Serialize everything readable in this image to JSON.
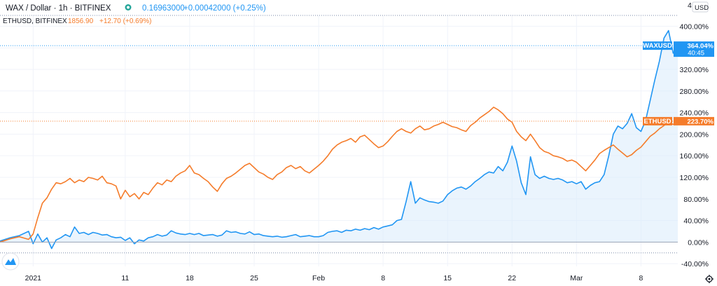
{
  "header": {
    "symbol": "WAX / Dollar · 1h · BITFINEX",
    "price": "0.16963000",
    "change": "+0.00042000 (+0.25%)",
    "compare_symbol": "ETHUSD, BITFINEX",
    "compare_price": "1856.90",
    "compare_change": "+12.70 (+0.69%)"
  },
  "currency_label": "USD",
  "top_partial_tick": "4",
  "colors": {
    "wax": "#2196f3",
    "eth": "#f57c2b",
    "wax_area": "#d9ebfb",
    "text": "#131722",
    "grid": "#f0f3fa",
    "dotted": "#7a8aa8"
  },
  "chart_data": {
    "type": "line",
    "ylabel": "",
    "ylim": [
      -45,
      420
    ],
    "y_ticks": [
      "400.00%",
      "360.00%",
      "320.00%",
      "280.00%",
      "240.00%",
      "200.00%",
      "160.00%",
      "120.00%",
      "80.00%",
      "40.00%",
      "0.00%",
      "-40.00%"
    ],
    "y_tick_values": [
      400,
      360,
      320,
      280,
      240,
      200,
      160,
      120,
      80,
      40,
      0,
      -40
    ],
    "x_ticks": [
      "2021",
      "11",
      "18",
      "25",
      "Feb",
      "8",
      "15",
      "22",
      "Mar",
      "8"
    ],
    "x_tick_positions": [
      0.0,
      10.0,
      17.0,
      24.0,
      31.0,
      38.0,
      45.0,
      52.0,
      59.0,
      66.0
    ],
    "xlim": [
      -3.6,
      70.0
    ],
    "series": [
      {
        "name": "WAXUSD",
        "color": "#2196f3",
        "fill": true,
        "label_value": "364.04%",
        "label_sub": "40:45",
        "points": [
          [
            -3.6,
            2
          ],
          [
            -2.5,
            8
          ],
          [
            -1.5,
            12
          ],
          [
            -0.5,
            20
          ],
          [
            0.0,
            -3
          ],
          [
            0.5,
            15
          ],
          [
            1.0,
            0
          ],
          [
            1.5,
            8
          ],
          [
            2.0,
            -12
          ],
          [
            2.5,
            4
          ],
          [
            3.0,
            8
          ],
          [
            3.5,
            14
          ],
          [
            4.0,
            10
          ],
          [
            4.5,
            28
          ],
          [
            5.0,
            16
          ],
          [
            5.5,
            18
          ],
          [
            6.0,
            14
          ],
          [
            6.5,
            18
          ],
          [
            7.0,
            16
          ],
          [
            7.5,
            13
          ],
          [
            8.0,
            14
          ],
          [
            8.5,
            10
          ],
          [
            9.0,
            8
          ],
          [
            9.5,
            9
          ],
          [
            10.0,
            3
          ],
          [
            10.5,
            8
          ],
          [
            11.0,
            -3
          ],
          [
            11.5,
            4
          ],
          [
            12.0,
            2
          ],
          [
            12.5,
            8
          ],
          [
            13.0,
            10
          ],
          [
            13.5,
            14
          ],
          [
            14.0,
            11
          ],
          [
            14.5,
            13
          ],
          [
            15.0,
            21
          ],
          [
            15.5,
            17
          ],
          [
            16.0,
            15
          ],
          [
            16.5,
            14
          ],
          [
            17.0,
            16
          ],
          [
            17.5,
            14
          ],
          [
            18.0,
            16
          ],
          [
            18.5,
            12
          ],
          [
            19.0,
            13
          ],
          [
            19.5,
            14
          ],
          [
            20.0,
            11
          ],
          [
            20.5,
            13
          ],
          [
            21.0,
            21
          ],
          [
            21.5,
            18
          ],
          [
            22.0,
            19
          ],
          [
            22.5,
            16
          ],
          [
            23.0,
            15
          ],
          [
            23.5,
            19
          ],
          [
            24.0,
            14
          ],
          [
            24.5,
            15
          ],
          [
            25.0,
            12
          ],
          [
            25.5,
            11
          ],
          [
            26.0,
            10
          ],
          [
            26.5,
            11
          ],
          [
            27.0,
            9
          ],
          [
            27.5,
            10
          ],
          [
            28.0,
            12
          ],
          [
            28.5,
            14
          ],
          [
            29.0,
            10
          ],
          [
            29.5,
            11
          ],
          [
            30.0,
            12
          ],
          [
            30.5,
            10
          ],
          [
            31.0,
            10
          ],
          [
            31.5,
            12
          ],
          [
            32.0,
            18
          ],
          [
            32.5,
            20
          ],
          [
            33.0,
            21
          ],
          [
            33.5,
            18
          ],
          [
            34.0,
            22
          ],
          [
            34.5,
            21
          ],
          [
            35.0,
            24
          ],
          [
            35.5,
            22
          ],
          [
            36.0,
            25
          ],
          [
            36.5,
            23
          ],
          [
            37.0,
            27
          ],
          [
            37.5,
            24
          ],
          [
            38.0,
            28
          ],
          [
            38.5,
            30
          ],
          [
            39.0,
            32
          ],
          [
            39.5,
            40
          ],
          [
            40.0,
            42
          ],
          [
            40.5,
            75
          ],
          [
            41.0,
            112
          ],
          [
            41.5,
            72
          ],
          [
            42.0,
            82
          ],
          [
            42.5,
            78
          ],
          [
            43.0,
            75
          ],
          [
            43.5,
            74
          ],
          [
            44.0,
            72
          ],
          [
            44.5,
            76
          ],
          [
            45.0,
            88
          ],
          [
            45.5,
            95
          ],
          [
            46.0,
            100
          ],
          [
            46.5,
            102
          ],
          [
            47.0,
            98
          ],
          [
            47.5,
            104
          ],
          [
            48.0,
            112
          ],
          [
            48.5,
            118
          ],
          [
            49.0,
            125
          ],
          [
            49.5,
            130
          ],
          [
            50.0,
            128
          ],
          [
            50.5,
            140
          ],
          [
            51.0,
            132
          ],
          [
            51.5,
            148
          ],
          [
            52.0,
            178
          ],
          [
            52.5,
            150
          ],
          [
            53.0,
            110
          ],
          [
            53.5,
            88
          ],
          [
            54.0,
            158
          ],
          [
            54.5,
            125
          ],
          [
            55.0,
            118
          ],
          [
            55.5,
            122
          ],
          [
            56.0,
            118
          ],
          [
            56.5,
            116
          ],
          [
            57.0,
            118
          ],
          [
            57.5,
            115
          ],
          [
            58.0,
            110
          ],
          [
            58.5,
            112
          ],
          [
            59.0,
            108
          ],
          [
            59.5,
            112
          ],
          [
            60.0,
            98
          ],
          [
            60.5,
            105
          ],
          [
            61.0,
            110
          ],
          [
            61.5,
            112
          ],
          [
            62.0,
            125
          ],
          [
            62.5,
            160
          ],
          [
            63.0,
            200
          ],
          [
            63.5,
            215
          ],
          [
            64.0,
            210
          ],
          [
            64.5,
            220
          ],
          [
            65.0,
            238
          ],
          [
            65.5,
            212
          ],
          [
            66.0,
            205
          ],
          [
            66.5,
            225
          ],
          [
            67.0,
            262
          ],
          [
            67.5,
            300
          ],
          [
            68.0,
            335
          ],
          [
            68.5,
            378
          ],
          [
            69.0,
            392
          ],
          [
            69.5,
            350
          ],
          [
            70.0,
            364
          ]
        ]
      },
      {
        "name": "ETHUSD",
        "color": "#f57c2b",
        "fill": false,
        "label_value": "223.70%",
        "label_sub": "",
        "points": [
          [
            -3.6,
            0
          ],
          [
            -2.5,
            6
          ],
          [
            -1.5,
            10
          ],
          [
            -0.5,
            5
          ],
          [
            0.0,
            15
          ],
          [
            0.5,
            45
          ],
          [
            1.0,
            72
          ],
          [
            1.5,
            82
          ],
          [
            2.0,
            98
          ],
          [
            2.5,
            110
          ],
          [
            3.0,
            108
          ],
          [
            3.5,
            112
          ],
          [
            4.0,
            118
          ],
          [
            4.5,
            110
          ],
          [
            5.0,
            115
          ],
          [
            5.5,
            112
          ],
          [
            6.0,
            120
          ],
          [
            6.5,
            118
          ],
          [
            7.0,
            115
          ],
          [
            7.5,
            122
          ],
          [
            8.0,
            110
          ],
          [
            8.5,
            108
          ],
          [
            9.0,
            104
          ],
          [
            9.5,
            80
          ],
          [
            10.0,
            96
          ],
          [
            10.5,
            84
          ],
          [
            11.0,
            90
          ],
          [
            11.5,
            80
          ],
          [
            12.0,
            92
          ],
          [
            12.5,
            88
          ],
          [
            13.0,
            100
          ],
          [
            13.5,
            110
          ],
          [
            14.0,
            106
          ],
          [
            14.5,
            115
          ],
          [
            15.0,
            112
          ],
          [
            15.5,
            122
          ],
          [
            16.0,
            128
          ],
          [
            16.5,
            132
          ],
          [
            17.0,
            142
          ],
          [
            17.5,
            128
          ],
          [
            18.0,
            125
          ],
          [
            18.5,
            118
          ],
          [
            19.0,
            112
          ],
          [
            19.5,
            102
          ],
          [
            20.0,
            94
          ],
          [
            20.5,
            108
          ],
          [
            21.0,
            118
          ],
          [
            21.5,
            122
          ],
          [
            22.0,
            128
          ],
          [
            22.5,
            135
          ],
          [
            23.0,
            142
          ],
          [
            23.5,
            146
          ],
          [
            24.0,
            138
          ],
          [
            24.5,
            130
          ],
          [
            25.0,
            126
          ],
          [
            25.5,
            120
          ],
          [
            26.0,
            116
          ],
          [
            26.5,
            125
          ],
          [
            27.0,
            130
          ],
          [
            27.5,
            138
          ],
          [
            28.0,
            142
          ],
          [
            28.5,
            136
          ],
          [
            29.0,
            140
          ],
          [
            29.5,
            132
          ],
          [
            30.0,
            128
          ],
          [
            30.5,
            135
          ],
          [
            31.0,
            142
          ],
          [
            31.5,
            150
          ],
          [
            32.0,
            160
          ],
          [
            32.5,
            172
          ],
          [
            33.0,
            180
          ],
          [
            33.5,
            185
          ],
          [
            34.0,
            188
          ],
          [
            34.5,
            192
          ],
          [
            35.0,
            185
          ],
          [
            35.5,
            195
          ],
          [
            36.0,
            198
          ],
          [
            36.5,
            190
          ],
          [
            37.0,
            182
          ],
          [
            37.5,
            175
          ],
          [
            38.0,
            178
          ],
          [
            38.5,
            186
          ],
          [
            39.0,
            196
          ],
          [
            39.5,
            205
          ],
          [
            40.0,
            210
          ],
          [
            40.5,
            205
          ],
          [
            41.0,
            202
          ],
          [
            41.5,
            210
          ],
          [
            42.0,
            215
          ],
          [
            42.5,
            208
          ],
          [
            43.0,
            210
          ],
          [
            43.5,
            215
          ],
          [
            44.0,
            218
          ],
          [
            44.5,
            222
          ],
          [
            45.0,
            218
          ],
          [
            45.5,
            214
          ],
          [
            46.0,
            212
          ],
          [
            46.5,
            208
          ],
          [
            47.0,
            205
          ],
          [
            47.5,
            216
          ],
          [
            48.0,
            222
          ],
          [
            48.5,
            230
          ],
          [
            49.0,
            236
          ],
          [
            49.5,
            242
          ],
          [
            50.0,
            250
          ],
          [
            50.5,
            245
          ],
          [
            51.0,
            238
          ],
          [
            51.5,
            228
          ],
          [
            52.0,
            222
          ],
          [
            52.5,
            205
          ],
          [
            53.0,
            195
          ],
          [
            53.5,
            188
          ],
          [
            54.0,
            200
          ],
          [
            54.5,
            188
          ],
          [
            55.0,
            175
          ],
          [
            55.5,
            168
          ],
          [
            56.0,
            165
          ],
          [
            56.5,
            160
          ],
          [
            57.0,
            158
          ],
          [
            57.5,
            155
          ],
          [
            58.0,
            150
          ],
          [
            58.5,
            152
          ],
          [
            59.0,
            148
          ],
          [
            59.5,
            140
          ],
          [
            60.0,
            132
          ],
          [
            60.5,
            142
          ],
          [
            61.0,
            152
          ],
          [
            61.5,
            164
          ],
          [
            62.0,
            170
          ],
          [
            62.5,
            175
          ],
          [
            63.0,
            180
          ],
          [
            63.5,
            172
          ],
          [
            64.0,
            165
          ],
          [
            64.5,
            158
          ],
          [
            65.0,
            162
          ],
          [
            65.5,
            170
          ],
          [
            66.0,
            176
          ],
          [
            66.5,
            186
          ],
          [
            67.0,
            196
          ],
          [
            67.5,
            202
          ],
          [
            68.0,
            210
          ],
          [
            68.5,
            216
          ],
          [
            69.0,
            222
          ],
          [
            69.5,
            218
          ],
          [
            70.0,
            224
          ]
        ]
      }
    ]
  }
}
